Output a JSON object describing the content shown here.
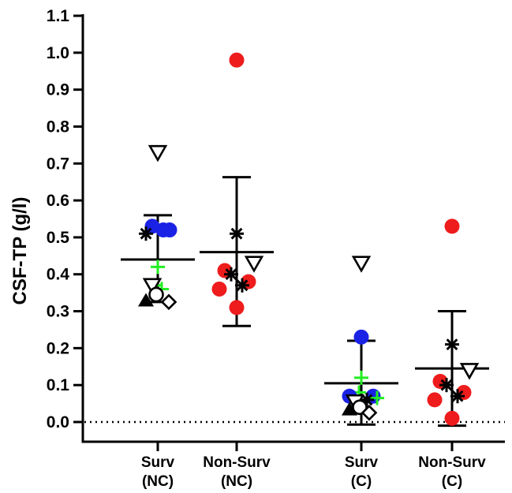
{
  "chart_data": {
    "type": "scatter",
    "title": "",
    "xlabel": "",
    "ylabel": "CSF-TP (g/l)",
    "ylim": [
      0,
      1.1
    ],
    "yticks": [
      "0.0",
      "0.1",
      "0.2",
      "0.3",
      "0.4",
      "0.5",
      "0.6",
      "0.7",
      "0.8",
      "0.9",
      "1.0",
      "1.1"
    ],
    "reference_line": {
      "y": 0.0,
      "style": "dotted"
    },
    "legend": "none",
    "grid": false,
    "colors": {
      "blue": "#1a22e6",
      "red": "#ee1c1c",
      "green": "#22ee22",
      "black": "#000000"
    },
    "groups": [
      {
        "label_line1": "Surv",
        "label_line2": "(NC)",
        "mean": 0.44,
        "sd_upper": 0.56,
        "sd_lower": 0.325,
        "points": [
          {
            "marker": "triangle-down-open",
            "y": 0.73,
            "color": "black",
            "offset": 0.0
          },
          {
            "marker": "circle-filled",
            "y": 0.53,
            "color": "blue",
            "offset": -0.07
          },
          {
            "marker": "circle-filled",
            "y": 0.52,
            "color": "blue",
            "offset": 0.07
          },
          {
            "marker": "circle-filled",
            "y": 0.52,
            "color": "blue",
            "offset": 0.15
          },
          {
            "marker": "asterisk",
            "y": 0.51,
            "color": "black",
            "offset": -0.15
          },
          {
            "marker": "plus",
            "y": 0.42,
            "color": "green",
            "offset": 0.0
          },
          {
            "marker": "plus",
            "y": 0.37,
            "color": "green",
            "offset": -0.04
          },
          {
            "marker": "plus",
            "y": 0.36,
            "color": "green",
            "offset": 0.05
          },
          {
            "marker": "triangle-down-open",
            "y": 0.37,
            "color": "black",
            "offset": -0.07
          },
          {
            "marker": "circle-open",
            "y": 0.345,
            "color": "black",
            "offset": -0.02
          },
          {
            "marker": "triangle-up-filled",
            "y": 0.33,
            "color": "black",
            "offset": -0.15
          },
          {
            "marker": "diamond-open",
            "y": 0.325,
            "color": "black",
            "offset": 0.14
          }
        ]
      },
      {
        "label_line1": "Non-Surv",
        "label_line2": "(NC)",
        "mean": 0.46,
        "sd_upper": 0.663,
        "sd_lower": 0.26,
        "points": [
          {
            "marker": "circle-filled",
            "y": 0.98,
            "color": "red",
            "offset": 0.0
          },
          {
            "marker": "asterisk",
            "y": 0.51,
            "color": "black",
            "offset": 0.0
          },
          {
            "marker": "triangle-down-open",
            "y": 0.43,
            "color": "black",
            "offset": 0.22
          },
          {
            "marker": "circle-filled",
            "y": 0.41,
            "color": "red",
            "offset": -0.15
          },
          {
            "marker": "asterisk",
            "y": 0.4,
            "color": "black",
            "offset": -0.07
          },
          {
            "marker": "circle-filled",
            "y": 0.38,
            "color": "red",
            "offset": 0.15
          },
          {
            "marker": "asterisk",
            "y": 0.37,
            "color": "black",
            "offset": 0.07
          },
          {
            "marker": "circle-filled",
            "y": 0.36,
            "color": "red",
            "offset": -0.22
          },
          {
            "marker": "circle-filled",
            "y": 0.31,
            "color": "red",
            "offset": 0.0
          }
        ]
      },
      {
        "label_line1": "Surv",
        "label_line2": "(C)",
        "mean": 0.105,
        "sd_upper": 0.22,
        "sd_lower": -0.007,
        "points": [
          {
            "marker": "triangle-down-open",
            "y": 0.43,
            "color": "black",
            "offset": 0.0
          },
          {
            "marker": "circle-filled",
            "y": 0.23,
            "color": "blue",
            "offset": 0.0
          },
          {
            "marker": "plus",
            "y": 0.12,
            "color": "green",
            "offset": 0.0
          },
          {
            "marker": "plus",
            "y": 0.08,
            "color": "green",
            "offset": -0.03
          },
          {
            "marker": "circle-filled",
            "y": 0.07,
            "color": "blue",
            "offset": -0.15
          },
          {
            "marker": "circle-filled",
            "y": 0.07,
            "color": "blue",
            "offset": 0.15
          },
          {
            "marker": "plus",
            "y": 0.065,
            "color": "green",
            "offset": 0.2
          },
          {
            "marker": "asterisk",
            "y": 0.06,
            "color": "black",
            "offset": 0.07
          },
          {
            "marker": "triangle-down-open",
            "y": 0.055,
            "color": "black",
            "offset": -0.08
          },
          {
            "marker": "circle-open",
            "y": 0.04,
            "color": "black",
            "offset": -0.02
          },
          {
            "marker": "triangle-up-filled",
            "y": 0.035,
            "color": "black",
            "offset": -0.15
          },
          {
            "marker": "diamond-open",
            "y": 0.025,
            "color": "black",
            "offset": 0.1
          }
        ]
      },
      {
        "label_line1": "Non-Surv",
        "label_line2": "(C)",
        "mean": 0.145,
        "sd_upper": 0.3,
        "sd_lower": -0.01,
        "points": [
          {
            "marker": "circle-filled",
            "y": 0.53,
            "color": "red",
            "offset": 0.0
          },
          {
            "marker": "asterisk",
            "y": 0.21,
            "color": "black",
            "offset": 0.0
          },
          {
            "marker": "triangle-down-open",
            "y": 0.14,
            "color": "black",
            "offset": 0.22
          },
          {
            "marker": "circle-filled",
            "y": 0.11,
            "color": "red",
            "offset": -0.15
          },
          {
            "marker": "asterisk",
            "y": 0.1,
            "color": "black",
            "offset": -0.07
          },
          {
            "marker": "circle-filled",
            "y": 0.08,
            "color": "red",
            "offset": 0.15
          },
          {
            "marker": "asterisk",
            "y": 0.07,
            "color": "black",
            "offset": 0.07
          },
          {
            "marker": "circle-filled",
            "y": 0.06,
            "color": "red",
            "offset": -0.22
          },
          {
            "marker": "circle-filled",
            "y": 0.01,
            "color": "red",
            "offset": 0.0
          }
        ]
      }
    ]
  }
}
